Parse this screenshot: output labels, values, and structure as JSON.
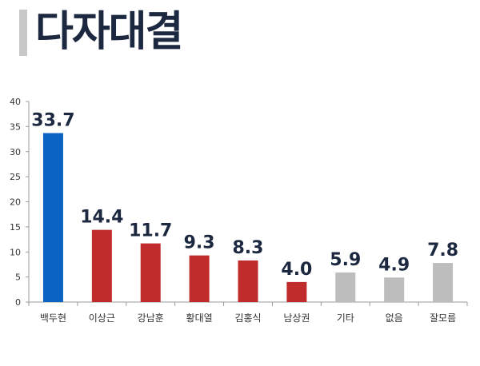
{
  "header": {
    "title": "다자대결"
  },
  "chart_data": {
    "type": "bar",
    "categories": [
      "백두현",
      "이상근",
      "강남훈",
      "황대열",
      "김홍식",
      "남상권",
      "기타",
      "없음",
      "잘모름"
    ],
    "values": [
      33.7,
      14.4,
      11.7,
      9.3,
      8.3,
      4.0,
      5.9,
      4.9,
      7.8
    ],
    "value_labels": [
      "33.7",
      "14.4",
      "11.7",
      "9.3",
      "8.3",
      "4.0",
      "5.9",
      "4.9",
      "7.8"
    ],
    "bar_colors": [
      "#0b63c4",
      "#c02b2b",
      "#c02b2b",
      "#c02b2b",
      "#c02b2b",
      "#c02b2b",
      "#bdbdbd",
      "#bdbdbd",
      "#bdbdbd"
    ],
    "y_ticks": [
      "0",
      "5",
      "10",
      "15",
      "20",
      "25",
      "30",
      "35",
      "40"
    ],
    "ylim": [
      0,
      40
    ],
    "grid": false,
    "legend": "none"
  }
}
